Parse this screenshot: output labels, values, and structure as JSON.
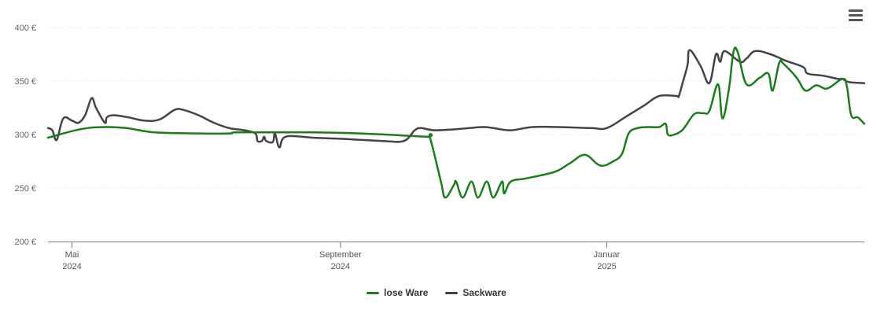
{
  "chart_data": {
    "type": "line",
    "title": "",
    "xlabel": "",
    "ylabel": "",
    "y_ticks": [
      "400 €",
      "350 €",
      "300 €",
      "250 €",
      "200 €"
    ],
    "ylim": [
      200,
      400
    ],
    "x_ticks": [
      {
        "date": "2024-05-01",
        "month": "Mai",
        "year": "2024"
      },
      {
        "date": "2024-09-01",
        "month": "September",
        "year": "2024"
      },
      {
        "date": "2025-01-01",
        "month": "Januar",
        "year": "2025"
      }
    ],
    "xlim": [
      "2024-04-20",
      "2025-04-29"
    ],
    "grid": true,
    "legend_position": "bottom-center",
    "series": [
      {
        "name": "lose Ware",
        "color": "#1a7d1a",
        "points": [
          [
            "2024-04-20",
            297
          ],
          [
            "2024-05-05",
            305
          ],
          [
            "2024-05-16",
            307
          ],
          [
            "2024-05-26",
            306
          ],
          [
            "2024-06-08",
            302
          ],
          [
            "2024-06-28",
            301
          ],
          [
            "2024-07-12",
            301
          ],
          [
            "2024-07-15",
            302
          ],
          [
            "2024-08-01",
            302
          ],
          [
            "2024-08-20",
            302
          ],
          [
            "2024-09-10",
            301
          ],
          [
            "2024-10-10",
            298
          ],
          [
            "2024-10-12",
            297
          ],
          [
            "2024-10-17",
            256
          ],
          [
            "2024-10-19",
            241
          ],
          [
            "2024-10-23",
            253
          ],
          [
            "2024-10-24",
            256
          ],
          [
            "2024-10-27",
            241
          ],
          [
            "2024-10-31",
            256
          ],
          [
            "2024-11-03",
            241
          ],
          [
            "2024-11-07",
            256
          ],
          [
            "2024-11-10",
            241
          ],
          [
            "2024-11-14",
            256
          ],
          [
            "2024-11-15",
            245
          ],
          [
            "2024-11-18",
            256
          ],
          [
            "2024-11-25",
            259
          ],
          [
            "2024-12-08",
            265
          ],
          [
            "2024-12-15",
            273
          ],
          [
            "2024-12-22",
            281
          ],
          [
            "2024-12-29",
            271
          ],
          [
            "2025-01-04",
            275
          ],
          [
            "2025-01-08",
            282
          ],
          [
            "2025-01-11",
            301
          ],
          [
            "2025-01-15",
            306
          ],
          [
            "2025-01-20",
            307
          ],
          [
            "2025-01-25",
            307
          ],
          [
            "2025-01-28",
            310
          ],
          [
            "2025-01-29",
            300
          ],
          [
            "2025-02-01",
            300
          ],
          [
            "2025-02-05",
            305
          ],
          [
            "2025-02-10",
            319
          ],
          [
            "2025-02-14",
            320
          ],
          [
            "2025-02-17",
            322
          ],
          [
            "2025-02-21",
            347
          ],
          [
            "2025-02-23",
            315
          ],
          [
            "2025-02-26",
            343
          ],
          [
            "2025-02-28",
            377
          ],
          [
            "2025-03-02",
            377
          ],
          [
            "2025-03-06",
            347
          ],
          [
            "2025-03-12",
            353
          ],
          [
            "2025-03-16",
            357
          ],
          [
            "2025-03-18",
            341
          ],
          [
            "2025-03-21",
            367
          ],
          [
            "2025-03-23",
            366
          ],
          [
            "2025-03-29",
            353
          ],
          [
            "2025-04-02",
            341
          ],
          [
            "2025-04-07",
            346
          ],
          [
            "2025-04-12",
            343
          ],
          [
            "2025-04-19",
            352
          ],
          [
            "2025-04-21",
            345
          ],
          [
            "2025-04-23",
            318
          ],
          [
            "2025-04-26",
            316
          ],
          [
            "2025-04-29",
            310
          ]
        ]
      },
      {
        "name": "Sackware",
        "color": "#434348",
        "points": [
          [
            "2024-04-20",
            306
          ],
          [
            "2024-04-22",
            304
          ],
          [
            "2024-04-24",
            295
          ],
          [
            "2024-04-27",
            315
          ],
          [
            "2024-05-01",
            313
          ],
          [
            "2024-05-04",
            311
          ],
          [
            "2024-05-07",
            318
          ],
          [
            "2024-05-10",
            334
          ],
          [
            "2024-05-12",
            325
          ],
          [
            "2024-05-16",
            311
          ],
          [
            "2024-05-17",
            316
          ],
          [
            "2024-05-20",
            318
          ],
          [
            "2024-05-27",
            316
          ],
          [
            "2024-06-03",
            313
          ],
          [
            "2024-06-10",
            314
          ],
          [
            "2024-06-17",
            323
          ],
          [
            "2024-06-21",
            323
          ],
          [
            "2024-06-28",
            318
          ],
          [
            "2024-07-05",
            311
          ],
          [
            "2024-07-12",
            306
          ],
          [
            "2024-07-19",
            304
          ],
          [
            "2024-07-24",
            301
          ],
          [
            "2024-07-25",
            294
          ],
          [
            "2024-07-27",
            294
          ],
          [
            "2024-07-28",
            298
          ],
          [
            "2024-07-29",
            294
          ],
          [
            "2024-08-01",
            293
          ],
          [
            "2024-08-02",
            301
          ],
          [
            "2024-08-04",
            288
          ],
          [
            "2024-08-07",
            298
          ],
          [
            "2024-08-20",
            297
          ],
          [
            "2024-09-01",
            296
          ],
          [
            "2024-09-20",
            294
          ],
          [
            "2024-09-30",
            294
          ],
          [
            "2024-10-05",
            304
          ],
          [
            "2024-10-08",
            306
          ],
          [
            "2024-10-14",
            304
          ],
          [
            "2024-10-24",
            305
          ],
          [
            "2024-11-05",
            307
          ],
          [
            "2024-11-10",
            306
          ],
          [
            "2024-11-18",
            304
          ],
          [
            "2024-11-28",
            307
          ],
          [
            "2024-12-10",
            307
          ],
          [
            "2024-12-25",
            306
          ],
          [
            "2025-01-01",
            306
          ],
          [
            "2025-01-10",
            317
          ],
          [
            "2025-01-18",
            327
          ],
          [
            "2025-01-25",
            336
          ],
          [
            "2025-02-02",
            336
          ],
          [
            "2025-02-03",
            336
          ],
          [
            "2025-02-05",
            350
          ],
          [
            "2025-02-07",
            365
          ],
          [
            "2025-02-08",
            379
          ],
          [
            "2025-02-13",
            364
          ],
          [
            "2025-02-17",
            348
          ],
          [
            "2025-02-20",
            375
          ],
          [
            "2025-02-22",
            368
          ],
          [
            "2025-02-24",
            378
          ],
          [
            "2025-03-03",
            368
          ],
          [
            "2025-03-06",
            371
          ],
          [
            "2025-03-10",
            378
          ],
          [
            "2025-03-17",
            375
          ],
          [
            "2025-03-24",
            369
          ],
          [
            "2025-04-01",
            363
          ],
          [
            "2025-04-03",
            357
          ],
          [
            "2025-04-10",
            355
          ],
          [
            "2025-04-17",
            352
          ],
          [
            "2025-04-19",
            352
          ],
          [
            "2025-04-22",
            349
          ],
          [
            "2025-04-29",
            348
          ]
        ]
      }
    ]
  },
  "icons": {
    "menu": "hamburger-menu-icon"
  }
}
